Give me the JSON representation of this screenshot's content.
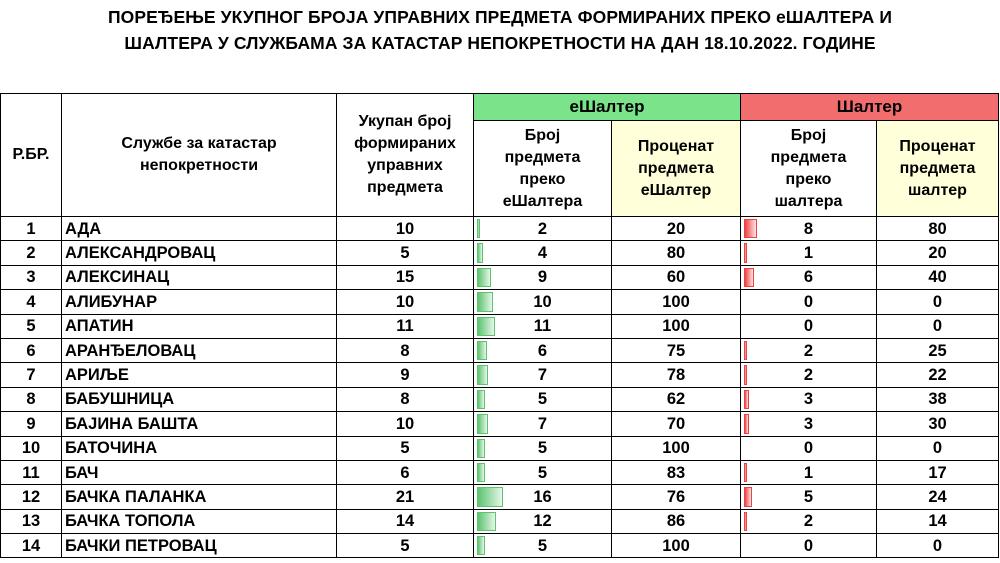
{
  "title": {
    "line1": "ПОРЕЂЕЊЕ УКУПНОГ БРОЈА УПРАВНИХ ПРЕДМЕТА ФОРМИРАНИХ ПРЕКО еШАЛТЕРА И",
    "line2": "ШАЛТЕРА У СЛУЖБАМА ЗА КАТАСТАР НЕПОКРЕТНОСТИ НА ДАН 18.10.2022. ГОДИНЕ"
  },
  "headers": {
    "rbr": "Р.БР.",
    "service": "Службе за катастар непокретности",
    "total": "Укупан број формираних управних предмета",
    "eshalter_group": "еШалтер",
    "e_count": "Број предмета преко еШалтера",
    "e_percent": "Проценат предмета еШалтер",
    "shalter_group": "Шалтер",
    "s_count": "Број предмета преко шалтера",
    "s_percent": "Проценат предмета шалтер"
  },
  "colors": {
    "eshalter_header": "#7be38a",
    "shalter_header": "#f26d6d",
    "percent_header": "#ffffd9",
    "green_bar": "#5cc46f",
    "red_bar": "#f04040"
  },
  "bar_scale_max": 25,
  "rows": [
    {
      "rbr": "1",
      "name": "АДА",
      "total": "10",
      "e_count": "2",
      "e_percent": "20",
      "s_count": "8",
      "s_percent": "80"
    },
    {
      "rbr": "2",
      "name": "АЛЕКСАНДРОВАЦ",
      "total": "5",
      "e_count": "4",
      "e_percent": "80",
      "s_count": "1",
      "s_percent": "20"
    },
    {
      "rbr": "3",
      "name": "АЛЕКСИНАЦ",
      "total": "15",
      "e_count": "9",
      "e_percent": "60",
      "s_count": "6",
      "s_percent": "40"
    },
    {
      "rbr": "4",
      "name": "АЛИБУНАР",
      "total": "10",
      "e_count": "10",
      "e_percent": "100",
      "s_count": "0",
      "s_percent": "0"
    },
    {
      "rbr": "5",
      "name": "АПАТИН",
      "total": "11",
      "e_count": "11",
      "e_percent": "100",
      "s_count": "0",
      "s_percent": "0"
    },
    {
      "rbr": "6",
      "name": "АРАНЂЕЛОВАЦ",
      "total": "8",
      "e_count": "6",
      "e_percent": "75",
      "s_count": "2",
      "s_percent": "25"
    },
    {
      "rbr": "7",
      "name": "АРИЉЕ",
      "total": "9",
      "e_count": "7",
      "e_percent": "78",
      "s_count": "2",
      "s_percent": "22"
    },
    {
      "rbr": "8",
      "name": "БАБУШНИЦА",
      "total": "8",
      "e_count": "5",
      "e_percent": "62",
      "s_count": "3",
      "s_percent": "38"
    },
    {
      "rbr": "9",
      "name": "БАЈИНА БАШТА",
      "total": "10",
      "e_count": "7",
      "e_percent": "70",
      "s_count": "3",
      "s_percent": "30"
    },
    {
      "rbr": "10",
      "name": "БАТОЧИНА",
      "total": "5",
      "e_count": "5",
      "e_percent": "100",
      "s_count": "0",
      "s_percent": "0"
    },
    {
      "rbr": "11",
      "name": "БАЧ",
      "total": "6",
      "e_count": "5",
      "e_percent": "83",
      "s_count": "1",
      "s_percent": "17"
    },
    {
      "rbr": "12",
      "name": "БАЧКА ПАЛАНКА",
      "total": "21",
      "e_count": "16",
      "e_percent": "76",
      "s_count": "5",
      "s_percent": "24"
    },
    {
      "rbr": "13",
      "name": "БАЧКА ТОПОЛА",
      "total": "14",
      "e_count": "12",
      "e_percent": "86",
      "s_count": "2",
      "s_percent": "14"
    },
    {
      "rbr": "14",
      "name": "БАЧКИ ПЕТРОВАЦ",
      "total": "5",
      "e_count": "5",
      "e_percent": "100",
      "s_count": "0",
      "s_percent": "0"
    }
  ]
}
